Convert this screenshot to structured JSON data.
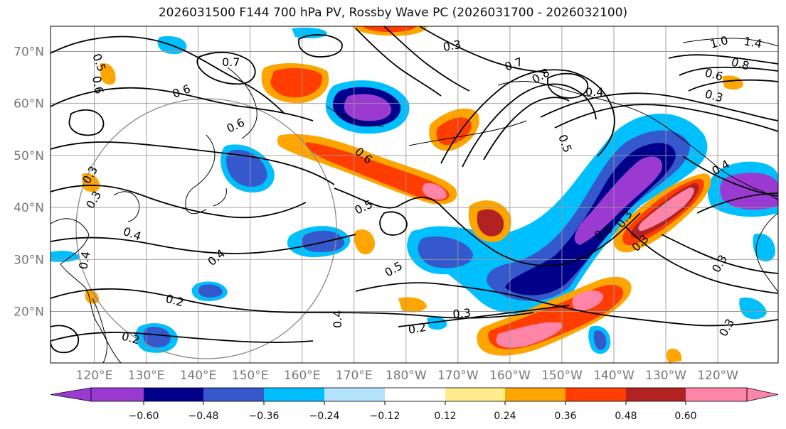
{
  "title": "2026031500 F144 700 hPa PV, Rossby Wave PC (2026031700 - 2026032100)",
  "map": {
    "lon_ticks": [
      "120°E",
      "130°E",
      "140°E",
      "150°E",
      "160°E",
      "170°E",
      "180°W",
      "170°W",
      "160°W",
      "150°W",
      "140°W",
      "130°W",
      "120°W"
    ],
    "lat_ticks": [
      "70°N",
      "60°N",
      "50°N",
      "40°N",
      "30°N",
      "20°N"
    ],
    "contour_labels": [
      "0.5",
      "0.6",
      "0.7",
      "0.6",
      "0.6",
      "0.6",
      "0.5",
      "0.5",
      "0.4",
      "0.4",
      "0.4",
      "0.2",
      "0.2",
      "0.2",
      "0.3",
      "0.3",
      "0.4",
      "0.7",
      "0.8",
      "0.4",
      "0.5",
      "0.3",
      "1.0",
      "1.4",
      "0.8",
      "0.6",
      "0.3",
      "0.4",
      "0.3",
      "0.6",
      "0.3",
      "0.3",
      "0.3",
      "0.3"
    ]
  },
  "colorbar": {
    "labels": [
      "−0.60",
      "−0.48",
      "−0.36",
      "−0.24",
      "−0.12",
      "0.12",
      "0.24",
      "0.36",
      "0.48",
      "0.60"
    ],
    "colors": [
      "#9a3ad1",
      "#00008b",
      "#3558cc",
      "#00bfff",
      "#b3e3ff",
      "#ffffff",
      "#ffec8b",
      "#ffa500",
      "#ff3d00",
      "#b22222",
      "#ff85a8"
    ]
  },
  "colors": {
    "purple": "#9a3ad1",
    "navy": "#00008b",
    "blue": "#3558cc",
    "cyan": "#00bfff",
    "lightblue": "#b3e3ff",
    "yellow": "#ffec8b",
    "orange": "#ffa500",
    "redorange": "#ff3d00",
    "firebrick": "#b22222",
    "pink": "#ff85a8"
  }
}
